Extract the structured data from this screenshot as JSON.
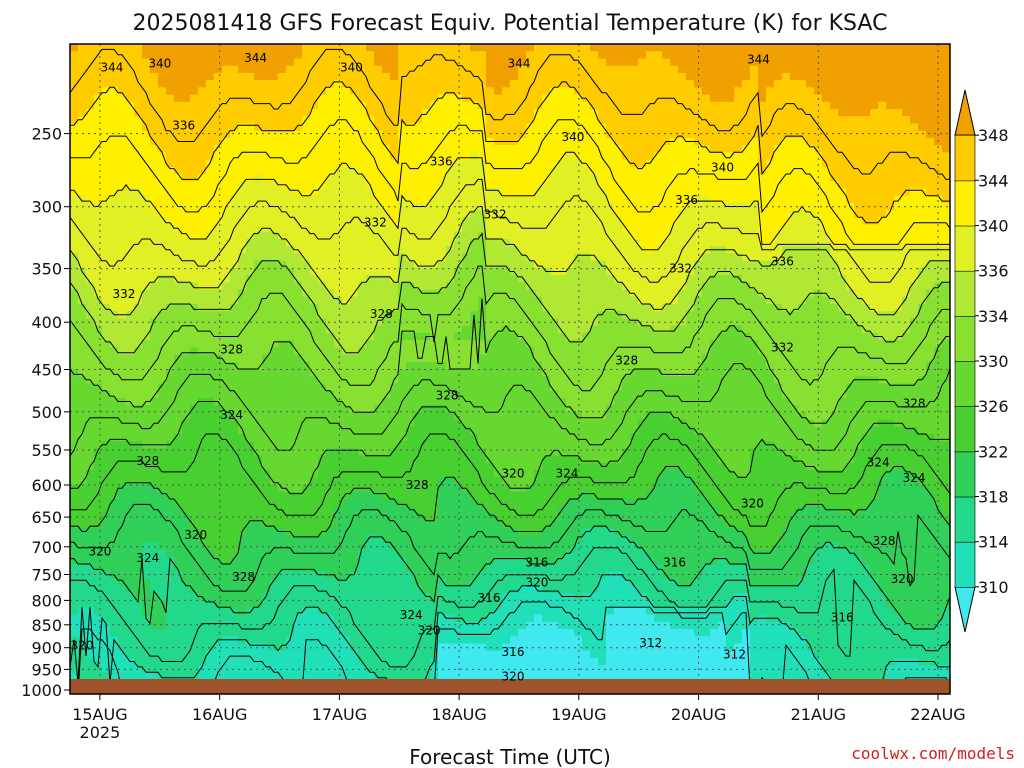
{
  "chart_data": {
    "type": "heatmap",
    "title": "2025081418 GFS Forecast Equiv. Potential Temperature (K) for KSAC",
    "xlabel": "Forecast Time (UTC)",
    "ylabel": "",
    "x_ticks": [
      {
        "label": "15AUG",
        "sub": "2025"
      },
      {
        "label": "16AUG",
        "sub": ""
      },
      {
        "label": "17AUG",
        "sub": ""
      },
      {
        "label": "18AUG",
        "sub": ""
      },
      {
        "label": "19AUG",
        "sub": ""
      },
      {
        "label": "20AUG",
        "sub": ""
      },
      {
        "label": "21AUG",
        "sub": ""
      },
      {
        "label": "22AUG",
        "sub": ""
      }
    ],
    "y_axis_scale": "log-pressure",
    "y_ticks": [
      250,
      300,
      350,
      400,
      450,
      500,
      550,
      600,
      650,
      700,
      750,
      800,
      850,
      900,
      950,
      1000
    ],
    "ylim": [
      200,
      1010
    ],
    "xlim_days": [
      14.75,
      22.1
    ],
    "grid": true,
    "colorbar": {
      "levels": [
        310,
        314,
        318,
        322,
        326,
        330,
        334,
        336,
        340,
        344,
        348
      ],
      "colors": [
        "#40e8f0",
        "#1fe0b8",
        "#22d88a",
        "#30d058",
        "#48d030",
        "#66d830",
        "#88e030",
        "#b0e834",
        "#e0f024",
        "#fff000",
        "#ffcc00",
        "#f0a000"
      ],
      "extend": "both"
    },
    "contour_labels": [
      {
        "value": "344",
        "x": 15.1,
        "y": 212
      },
      {
        "value": "340",
        "x": 15.5,
        "y": 210
      },
      {
        "value": "344",
        "x": 16.3,
        "y": 207
      },
      {
        "value": "340",
        "x": 17.1,
        "y": 212
      },
      {
        "value": "344",
        "x": 18.5,
        "y": 210
      },
      {
        "value": "344",
        "x": 20.5,
        "y": 208
      },
      {
        "value": "336",
        "x": 15.7,
        "y": 245
      },
      {
        "value": "336",
        "x": 17.85,
        "y": 268
      },
      {
        "value": "340",
        "x": 18.95,
        "y": 252
      },
      {
        "value": "340",
        "x": 20.2,
        "y": 272
      },
      {
        "value": "336",
        "x": 19.9,
        "y": 295
      },
      {
        "value": "332",
        "x": 17.3,
        "y": 312
      },
      {
        "value": "332",
        "x": 18.3,
        "y": 306
      },
      {
        "value": "336",
        "x": 20.7,
        "y": 344
      },
      {
        "value": "332",
        "x": 19.85,
        "y": 350
      },
      {
        "value": "332",
        "x": 15.2,
        "y": 373
      },
      {
        "value": "328",
        "x": 17.35,
        "y": 392
      },
      {
        "value": "332",
        "x": 20.7,
        "y": 426
      },
      {
        "value": "328",
        "x": 16.1,
        "y": 428
      },
      {
        "value": "328",
        "x": 19.4,
        "y": 440
      },
      {
        "value": "328",
        "x": 17.9,
        "y": 480
      },
      {
        "value": "328",
        "x": 21.8,
        "y": 490
      },
      {
        "value": "324",
        "x": 16.1,
        "y": 504
      },
      {
        "value": "328",
        "x": 15.4,
        "y": 565
      },
      {
        "value": "324",
        "x": 21.5,
        "y": 567
      },
      {
        "value": "320",
        "x": 18.45,
        "y": 583
      },
      {
        "value": "324",
        "x": 18.9,
        "y": 583
      },
      {
        "value": "324",
        "x": 21.8,
        "y": 590
      },
      {
        "value": "328",
        "x": 17.65,
        "y": 600
      },
      {
        "value": "320",
        "x": 20.45,
        "y": 628
      },
      {
        "value": "320",
        "x": 15.8,
        "y": 680
      },
      {
        "value": "328",
        "x": 21.55,
        "y": 690
      },
      {
        "value": "320",
        "x": 15.0,
        "y": 708
      },
      {
        "value": "324",
        "x": 15.4,
        "y": 720
      },
      {
        "value": "316",
        "x": 18.65,
        "y": 728
      },
      {
        "value": "316",
        "x": 19.8,
        "y": 728
      },
      {
        "value": "328",
        "x": 16.2,
        "y": 755
      },
      {
        "value": "320",
        "x": 18.65,
        "y": 765
      },
      {
        "value": "320",
        "x": 21.7,
        "y": 758
      },
      {
        "value": "316",
        "x": 18.25,
        "y": 795
      },
      {
        "value": "324",
        "x": 17.6,
        "y": 830
      },
      {
        "value": "316",
        "x": 21.2,
        "y": 835
      },
      {
        "value": "320",
        "x": 17.75,
        "y": 862
      },
      {
        "value": "312",
        "x": 19.6,
        "y": 890
      },
      {
        "value": "320",
        "x": 14.85,
        "y": 895
      },
      {
        "value": "316",
        "x": 18.45,
        "y": 910
      },
      {
        "value": "312",
        "x": 20.3,
        "y": 915
      },
      {
        "value": "320",
        "x": 18.45,
        "y": 967
      }
    ]
  },
  "credit": "coolwx.com/models"
}
